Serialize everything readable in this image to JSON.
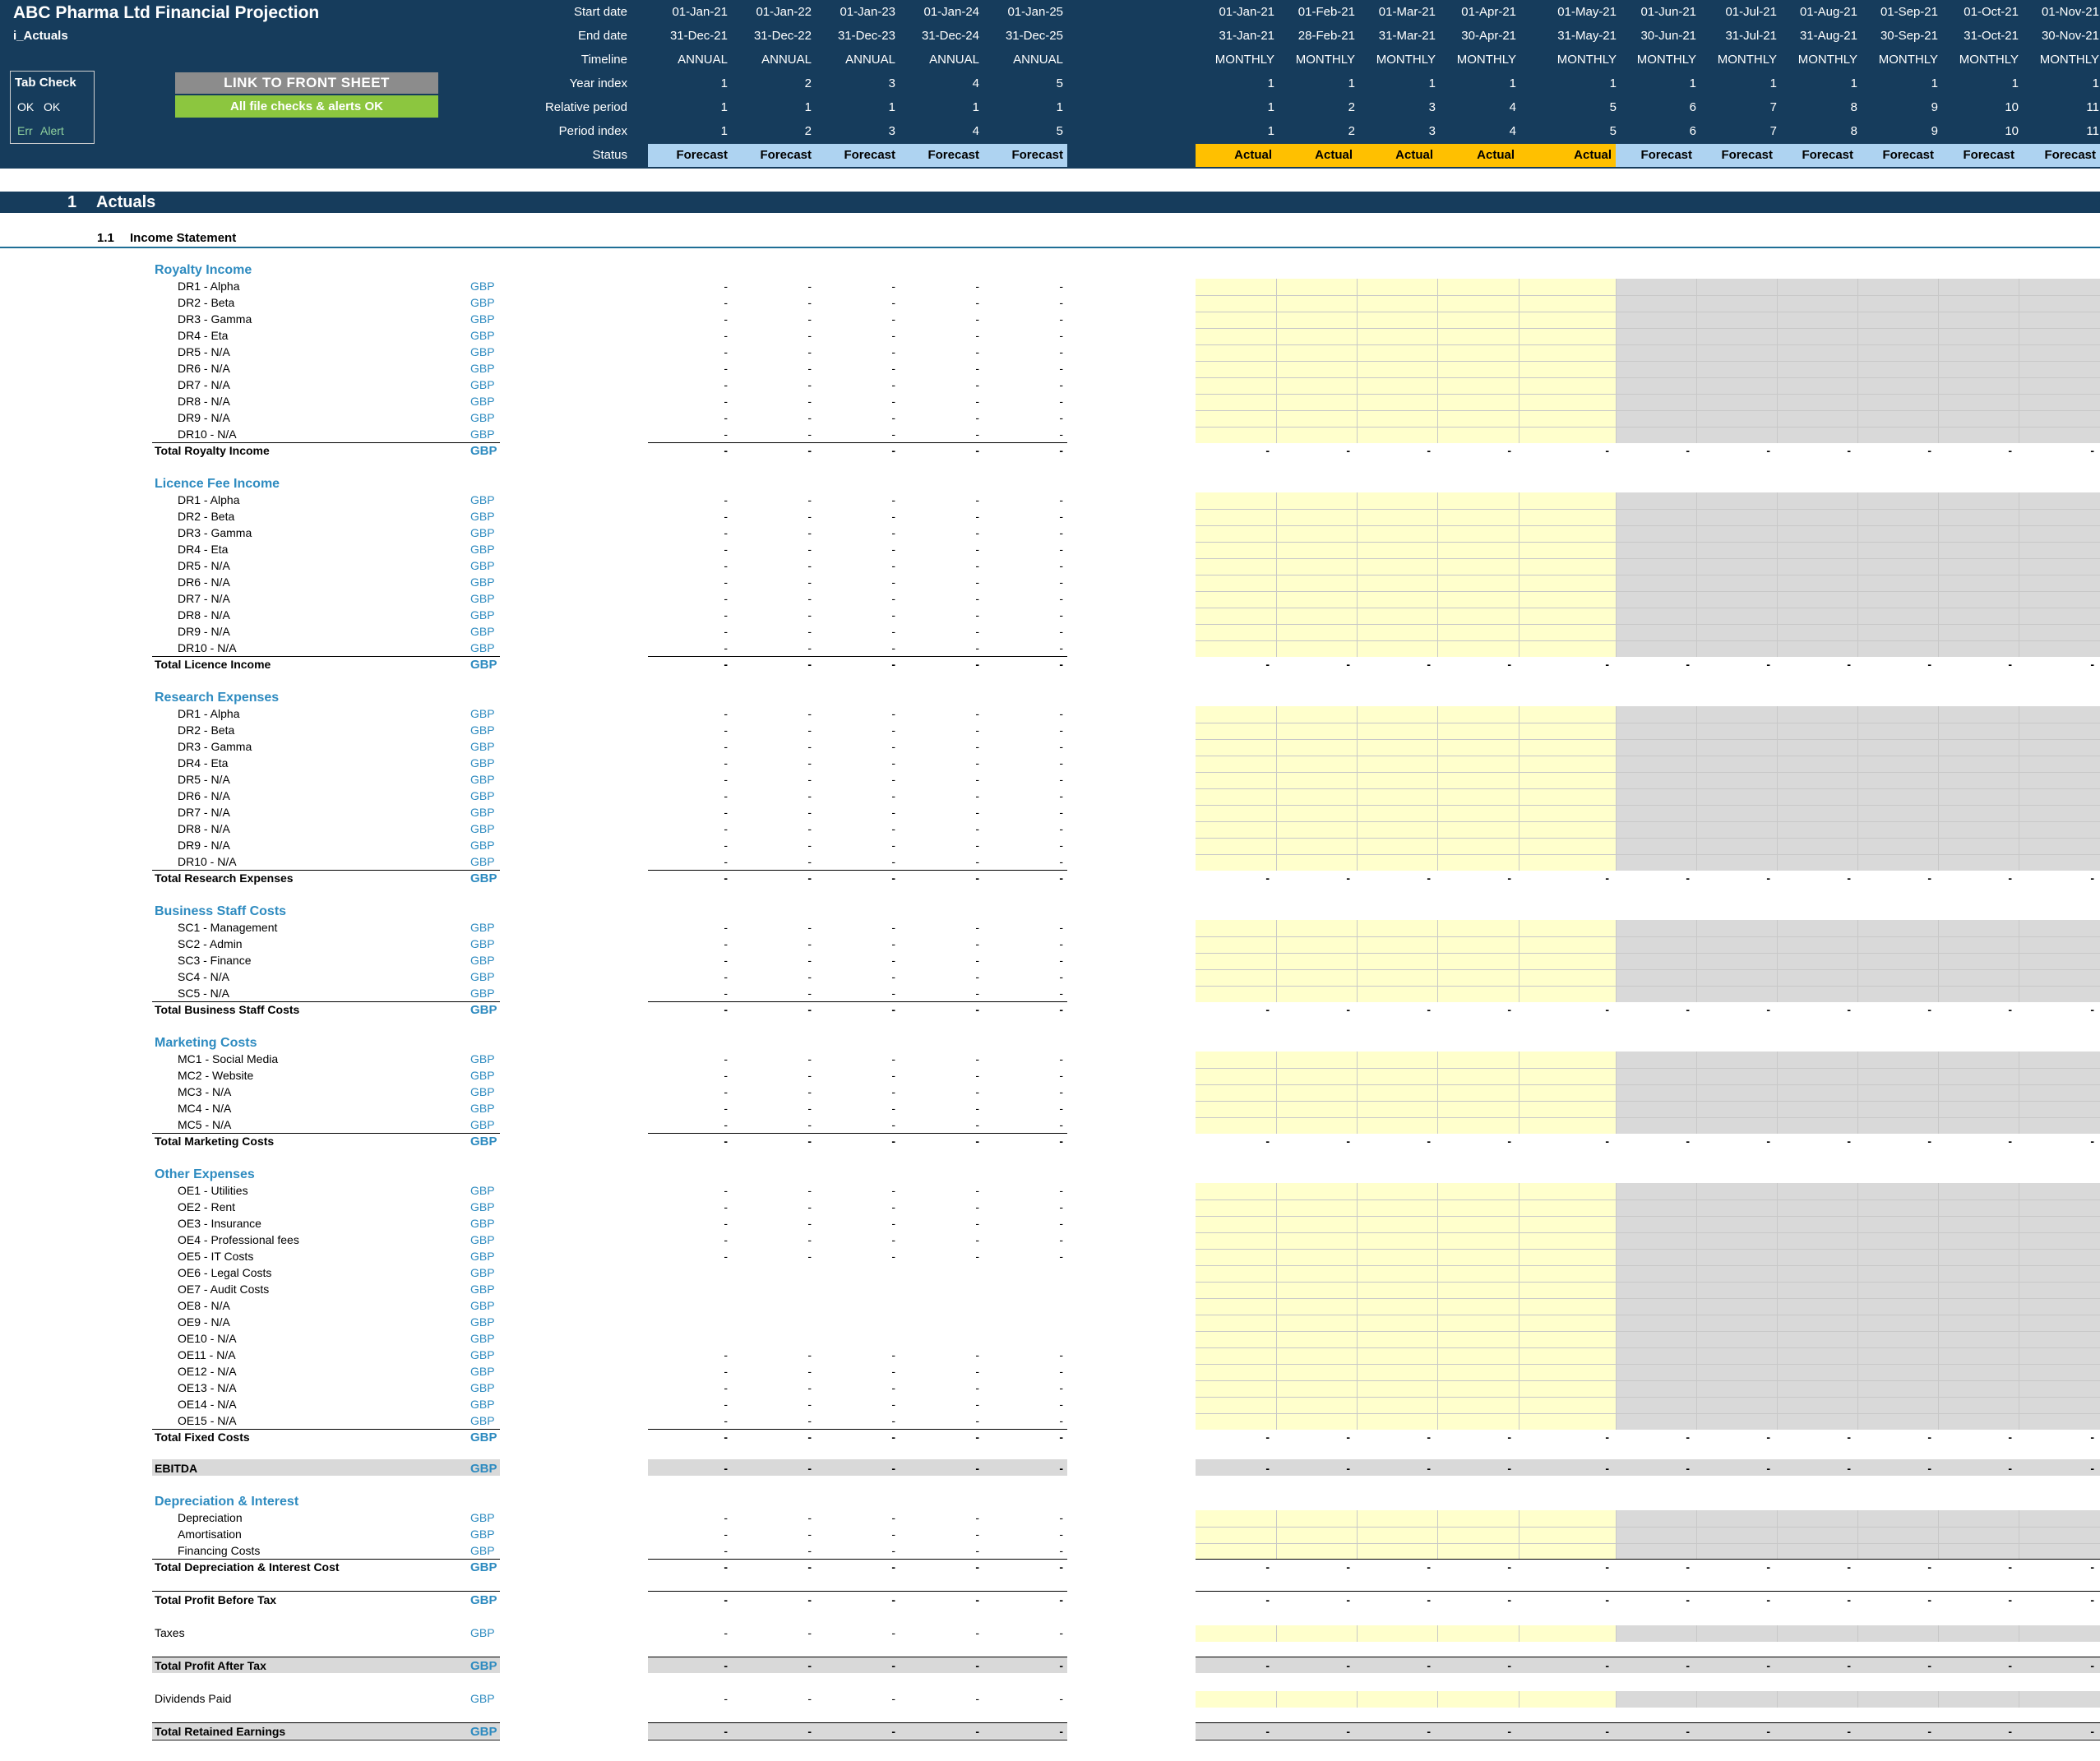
{
  "app": {
    "title": "ABC Pharma Ltd Financial Projection",
    "sheet": "i_Actuals"
  },
  "tab_check": {
    "title": "Tab Check",
    "ok1": "OK",
    "ok2": "OK",
    "err": "Err",
    "alert": "Alert"
  },
  "buttons": {
    "front": "LINK TO FRONT SHEET",
    "checks": "All file checks & alerts OK"
  },
  "header_labels": [
    "Start date",
    "End date",
    "Timeline",
    "Year index",
    "Relative period",
    "Period index",
    "Status"
  ],
  "annual_cols": [
    {
      "start": "01-Jan-21",
      "end": "31-Dec-21",
      "timeline": "ANNUAL",
      "year": "1",
      "rel": "1",
      "period": "1",
      "status": "Forecast"
    },
    {
      "start": "01-Jan-22",
      "end": "31-Dec-22",
      "timeline": "ANNUAL",
      "year": "2",
      "rel": "1",
      "period": "2",
      "status": "Forecast"
    },
    {
      "start": "01-Jan-23",
      "end": "31-Dec-23",
      "timeline": "ANNUAL",
      "year": "3",
      "rel": "1",
      "period": "3",
      "status": "Forecast"
    },
    {
      "start": "01-Jan-24",
      "end": "31-Dec-24",
      "timeline": "ANNUAL",
      "year": "4",
      "rel": "1",
      "period": "4",
      "status": "Forecast"
    },
    {
      "start": "01-Jan-25",
      "end": "31-Dec-25",
      "timeline": "ANNUAL",
      "year": "5",
      "rel": "1",
      "period": "5",
      "status": "Forecast"
    }
  ],
  "monthly_cols": [
    {
      "start": "01-Jan-21",
      "end": "31-Jan-21",
      "timeline": "MONTHLY",
      "year": "1",
      "rel": "1",
      "period": "1",
      "status": "Actual"
    },
    {
      "start": "01-Feb-21",
      "end": "28-Feb-21",
      "timeline": "MONTHLY",
      "year": "1",
      "rel": "2",
      "period": "2",
      "status": "Actual"
    },
    {
      "start": "01-Mar-21",
      "end": "31-Mar-21",
      "timeline": "MONTHLY",
      "year": "1",
      "rel": "3",
      "period": "3",
      "status": "Actual"
    },
    {
      "start": "01-Apr-21",
      "end": "30-Apr-21",
      "timeline": "MONTHLY",
      "year": "1",
      "rel": "4",
      "period": "4",
      "status": "Actual"
    },
    {
      "start": "01-May-21",
      "end": "31-May-21",
      "timeline": "MONTHLY",
      "year": "1",
      "rel": "5",
      "period": "5",
      "status": "Actual"
    },
    {
      "start": "01-Jun-21",
      "end": "30-Jun-21",
      "timeline": "MONTHLY",
      "year": "1",
      "rel": "6",
      "period": "6",
      "status": "Forecast"
    },
    {
      "start": "01-Jul-21",
      "end": "31-Jul-21",
      "timeline": "MONTHLY",
      "year": "1",
      "rel": "7",
      "period": "7",
      "status": "Forecast"
    },
    {
      "start": "01-Aug-21",
      "end": "31-Aug-21",
      "timeline": "MONTHLY",
      "year": "1",
      "rel": "8",
      "period": "8",
      "status": "Forecast"
    },
    {
      "start": "01-Sep-21",
      "end": "30-Sep-21",
      "timeline": "MONTHLY",
      "year": "1",
      "rel": "9",
      "period": "9",
      "status": "Forecast"
    },
    {
      "start": "01-Oct-21",
      "end": "31-Oct-21",
      "timeline": "MONTHLY",
      "year": "1",
      "rel": "10",
      "period": "10",
      "status": "Forecast"
    },
    {
      "start": "01-Nov-21",
      "end": "30-Nov-21",
      "timeline": "MONTHLY",
      "year": "1",
      "rel": "11",
      "period": "11",
      "status": "Forecast"
    }
  ],
  "section": {
    "num": "1",
    "title": "Actuals"
  },
  "subsection": {
    "num": "1.1",
    "title": "Income Statement"
  },
  "unit": "GBP",
  "dash": "-",
  "groups": [
    {
      "title": "Royalty Income",
      "items": [
        "DR1 - Alpha",
        "DR2 - Beta",
        "DR3 - Gamma",
        "DR4 - Eta",
        "DR5 - N/A",
        "DR6 - N/A",
        "DR7 - N/A",
        "DR8 - N/A",
        "DR9 - N/A",
        "DR10 - N/A"
      ],
      "total": "Total Royalty Income"
    },
    {
      "title": "Licence Fee Income",
      "items": [
        "DR1 - Alpha",
        "DR2 - Beta",
        "DR3 - Gamma",
        "DR4 - Eta",
        "DR5 - N/A",
        "DR6 - N/A",
        "DR7 - N/A",
        "DR8 - N/A",
        "DR9 - N/A",
        "DR10 - N/A"
      ],
      "total": "Total Licence Income"
    },
    {
      "title": "Research Expenses",
      "items": [
        "DR1 - Alpha",
        "DR2 - Beta",
        "DR3 - Gamma",
        "DR4 - Eta",
        "DR5 - N/A",
        "DR6 - N/A",
        "DR7 - N/A",
        "DR8 - N/A",
        "DR9 - N/A",
        "DR10 - N/A"
      ],
      "total": "Total Research Expenses"
    },
    {
      "title": "Business Staff Costs",
      "items": [
        "SC1 - Management",
        "SC2 - Admin",
        "SC3 - Finance",
        "SC4 - N/A",
        "SC5 - N/A"
      ],
      "total": "Total Business Staff Costs"
    },
    {
      "title": "Marketing Costs",
      "items": [
        "MC1 - Social Media",
        "MC2 - Website",
        "MC3 - N/A",
        "MC4 - N/A",
        "MC5 - N/A"
      ],
      "total": "Total Marketing Costs"
    },
    {
      "title": "Other Expenses",
      "items": [
        "OE1 - Utilities",
        "OE2 - Rent",
        "OE3 - Insurance",
        "OE4 - Professional fees",
        "OE5 - IT Costs",
        "OE6 - Legal Costs",
        "OE7 - Audit Costs",
        "OE8 - N/A",
        "OE9 - N/A",
        "OE10 - N/A",
        "OE11 - N/A",
        "OE12 - N/A",
        "OE13 - N/A",
        "OE14 - N/A",
        "OE15 - N/A"
      ],
      "total": "Total Fixed Costs"
    }
  ],
  "ebitda": "EBITDA",
  "dep": {
    "title": "Depreciation & Interest",
    "items": [
      "Depreciation",
      "Amortisation",
      "Financing Costs"
    ],
    "total": "Total Depreciation & Interest Cost"
  },
  "pbt": "Total Profit Before Tax",
  "taxes": "Taxes",
  "pat": "Total Profit After Tax",
  "dividends": "Dividends Paid",
  "retained": "Total Retained Earnings"
}
